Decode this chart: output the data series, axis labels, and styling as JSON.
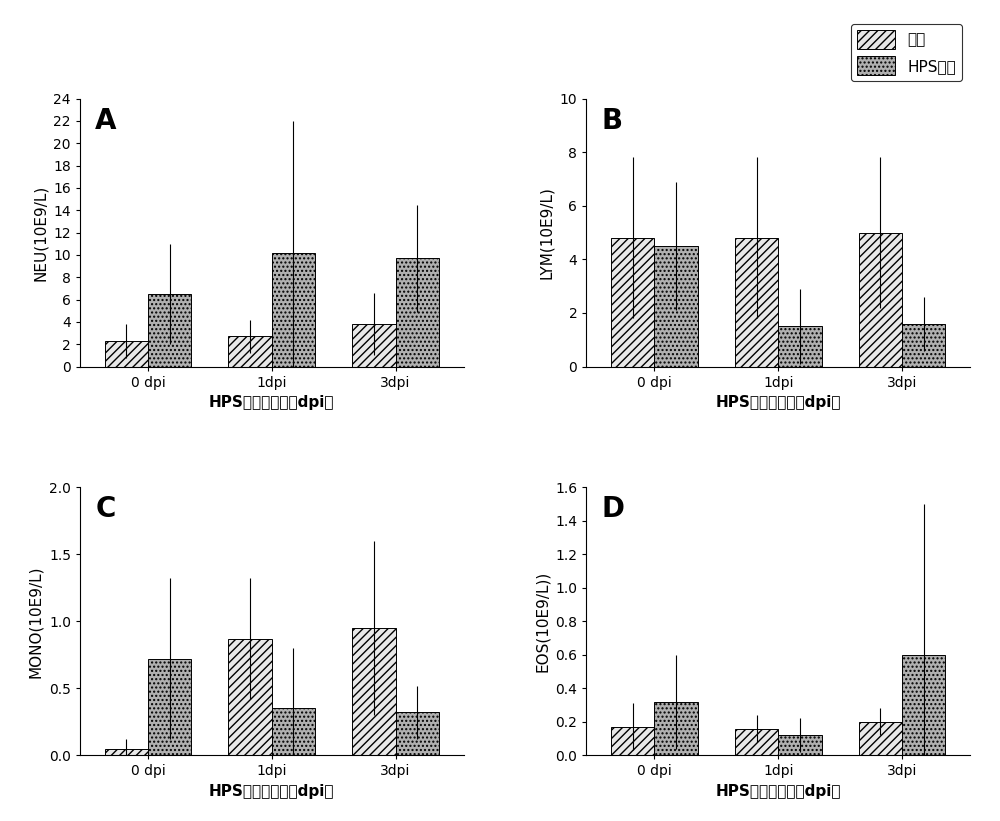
{
  "panels": [
    {
      "label": "A",
      "ylabel": "NEU(10E9/L)",
      "xlabel": "HPS感染后天数（dpi）",
      "ylim": [
        0,
        24
      ],
      "yticks": [
        0,
        2,
        4,
        6,
        8,
        10,
        12,
        14,
        16,
        18,
        20,
        22,
        24
      ],
      "xtick_labels": [
        "0 dpi",
        "1dpi",
        "3dpi"
      ],
      "control_vals": [
        2.3,
        2.7,
        3.8
      ],
      "hps_vals": [
        6.5,
        10.2,
        9.7
      ],
      "control_errs": [
        1.5,
        1.5,
        2.8
      ],
      "hps_errs": [
        4.5,
        11.8,
        4.8
      ]
    },
    {
      "label": "B",
      "ylabel": "LYM(10E9/L)",
      "xlabel": "HPS感染后天数（dpi）",
      "ylim": [
        0,
        10
      ],
      "yticks": [
        0,
        2,
        4,
        6,
        8,
        10
      ],
      "xtick_labels": [
        "0 dpi",
        "1dpi",
        "3dpi"
      ],
      "control_vals": [
        4.8,
        4.8,
        5.0
      ],
      "hps_vals": [
        4.5,
        1.5,
        1.6
      ],
      "control_errs": [
        3.0,
        3.0,
        2.8
      ],
      "hps_errs": [
        2.4,
        1.4,
        1.0
      ]
    },
    {
      "label": "C",
      "ylabel": "MONO(10E9/L)",
      "xlabel": "HPS感染后天数（dpi）",
      "ylim": [
        0,
        2.0
      ],
      "yticks": [
        0.0,
        0.5,
        1.0,
        1.5,
        2.0
      ],
      "xtick_labels": [
        "0 dpi",
        "1dpi",
        "3dpi"
      ],
      "control_vals": [
        0.05,
        0.87,
        0.95
      ],
      "hps_vals": [
        0.72,
        0.35,
        0.32
      ],
      "control_errs": [
        0.07,
        0.45,
        0.65
      ],
      "hps_errs": [
        0.6,
        0.45,
        0.2
      ]
    },
    {
      "label": "D",
      "ylabel": "EOS(10E9/L))",
      "xlabel": "HPS感染后天数（dpi）",
      "ylim": [
        0,
        1.6
      ],
      "yticks": [
        0.0,
        0.2,
        0.4,
        0.6,
        0.8,
        1.0,
        1.2,
        1.4,
        1.6
      ],
      "xtick_labels": [
        "0 dpi",
        "1dpi",
        "3dpi"
      ],
      "control_vals": [
        0.17,
        0.16,
        0.2
      ],
      "hps_vals": [
        0.32,
        0.12,
        0.6
      ],
      "control_errs": [
        0.14,
        0.08,
        0.08
      ],
      "hps_errs": [
        0.28,
        0.1,
        0.9
      ]
    }
  ],
  "legend_labels": [
    "对照",
    "HPS感染"
  ],
  "bar_width": 0.35,
  "control_facecolor": "#e8e8e8",
  "hps_facecolor": "#b0b0b0",
  "control_hatch": "////",
  "hps_hatch": "....",
  "background_color": "#ffffff",
  "label_fontsize": 20,
  "tick_fontsize": 10,
  "axis_label_fontsize": 11,
  "legend_fontsize": 11
}
